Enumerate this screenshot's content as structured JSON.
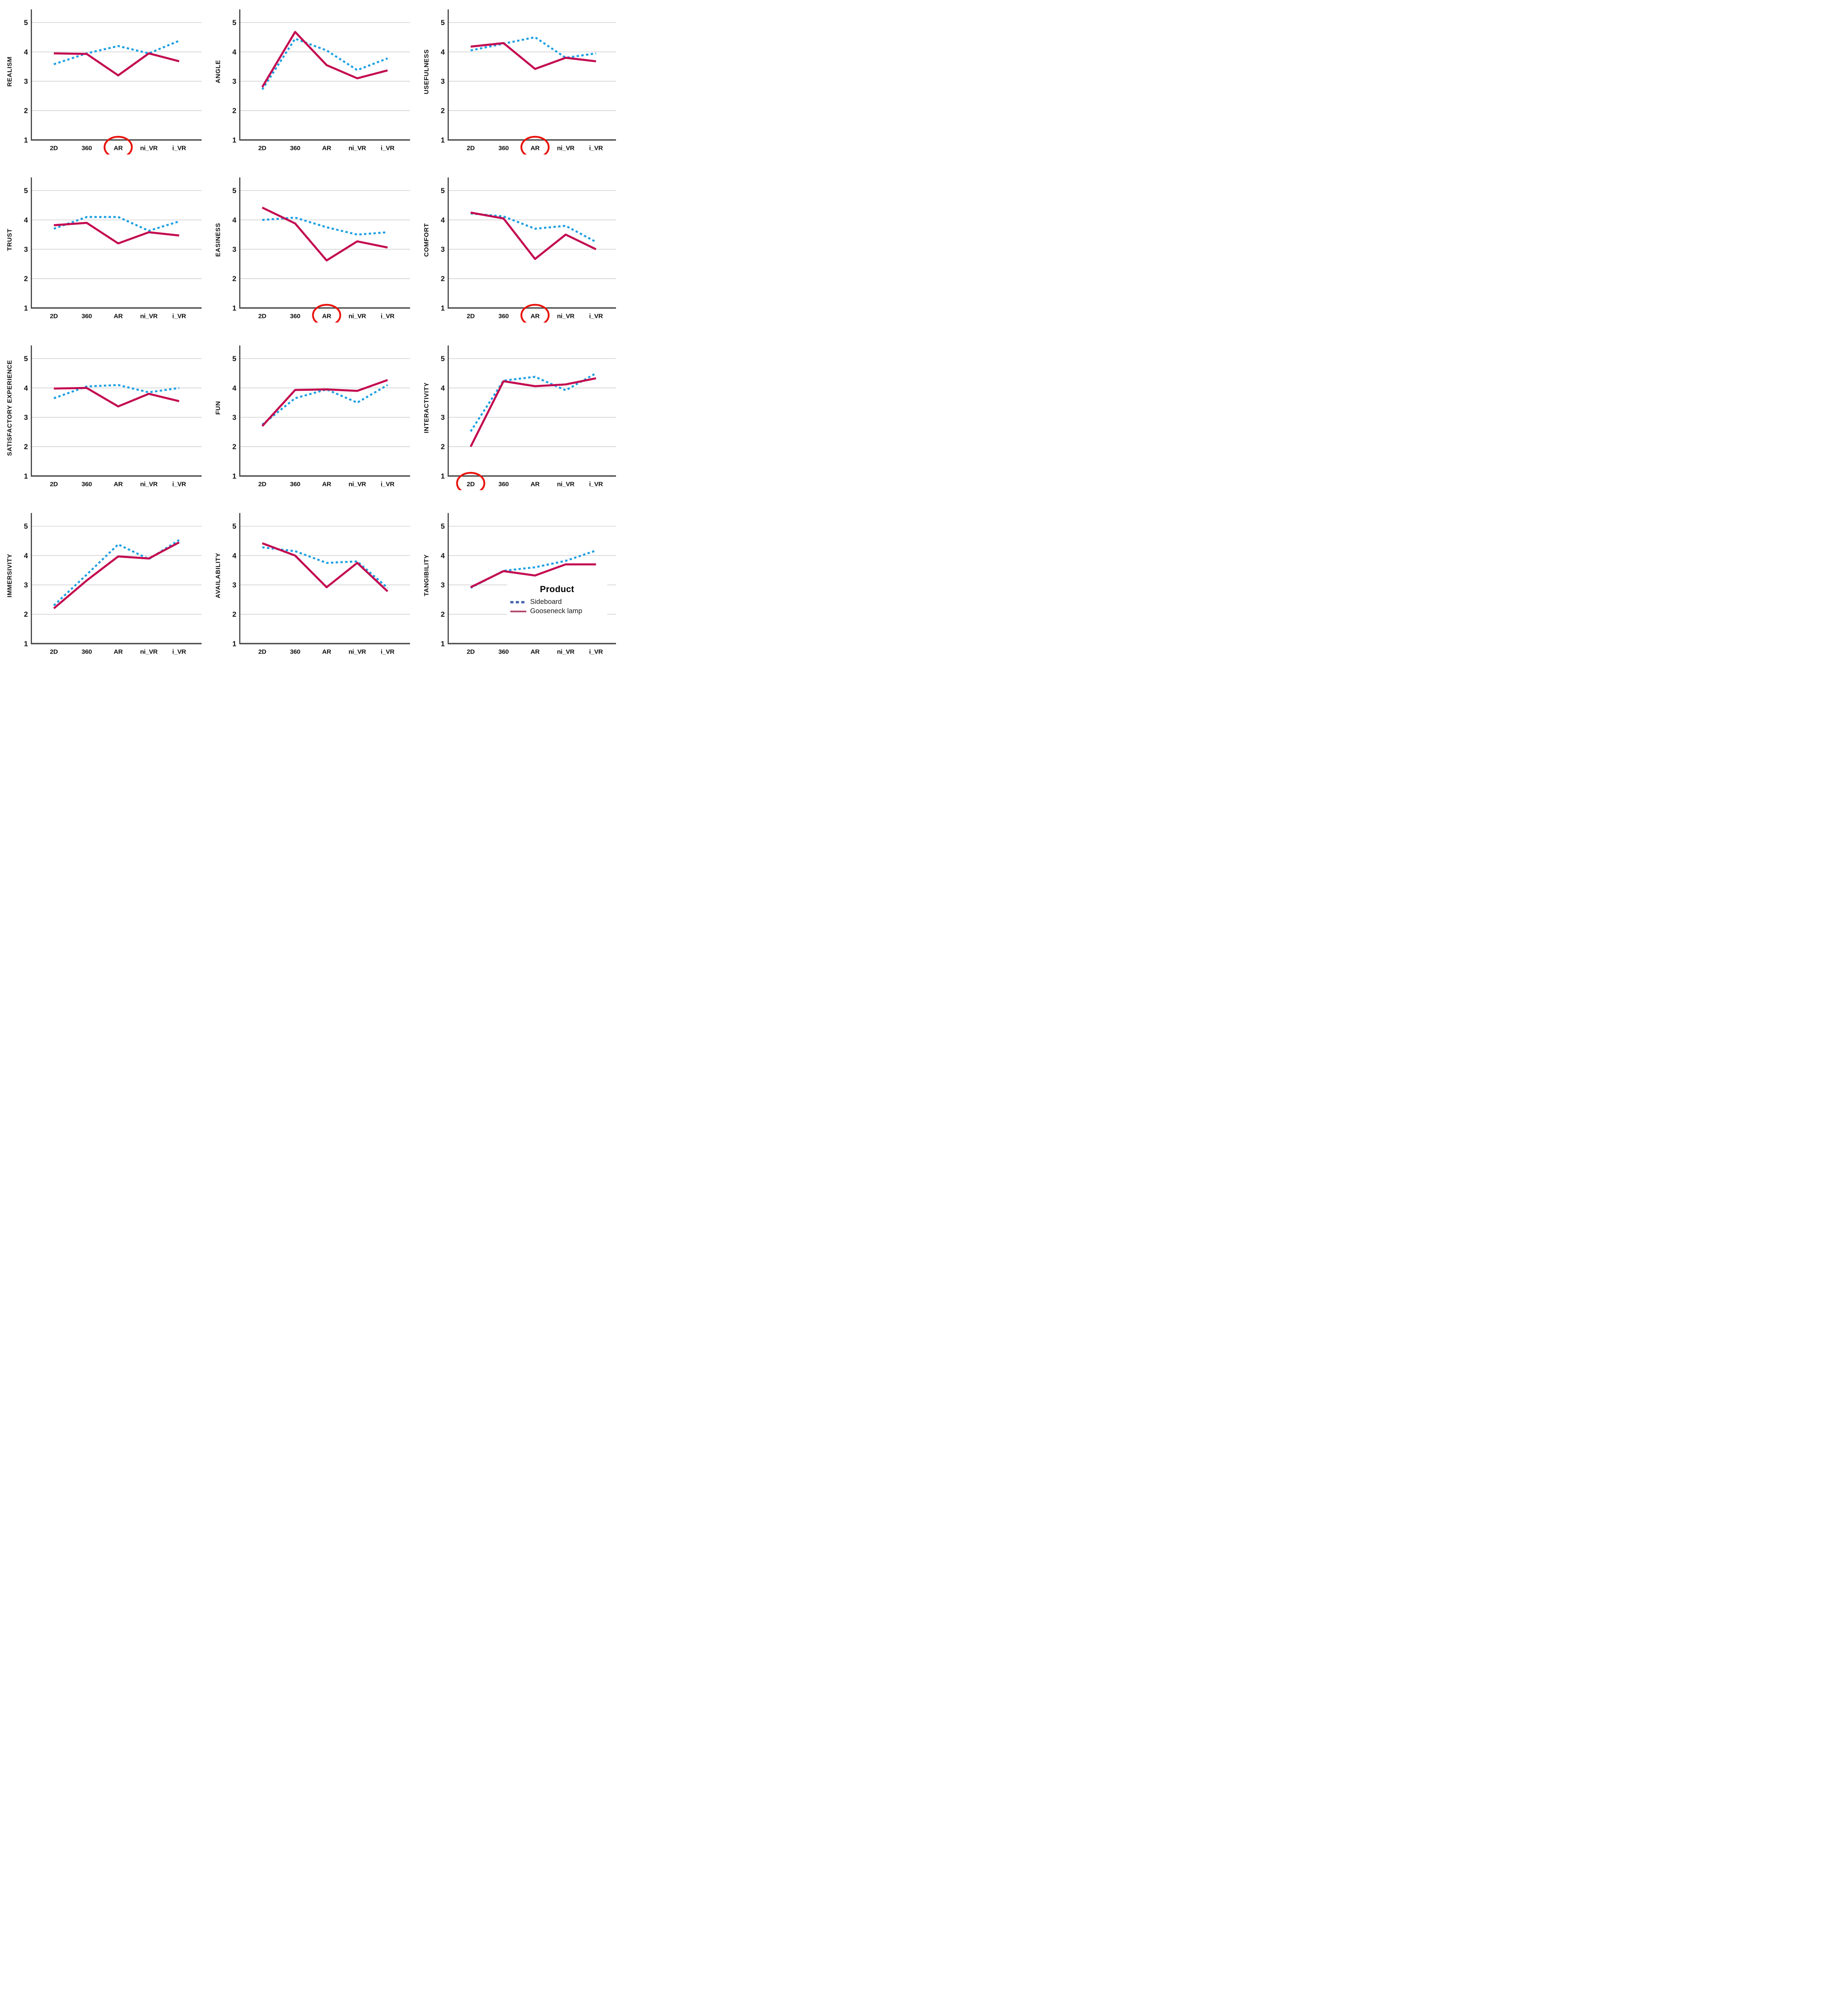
{
  "figure": {
    "background": "#ffffff",
    "description": "4x3 grid of SPSS-style profile line charts comparing two products across five presentation formats"
  },
  "legend": {
    "title": "Product",
    "items": [
      {
        "label": "Sideboard",
        "series": "sideboard",
        "swatch_style": "dashed",
        "swatch_color": "#4463AC"
      },
      {
        "label": "Gooseneck lamp",
        "series": "gooseneck",
        "swatch_style": "solid",
        "swatch_color": "#B6496C"
      }
    ],
    "position": "inside bottom-right panel (TANGIBILITY)"
  },
  "colors": {
    "sideboard_line": "#1B9FE4",
    "gooseneck_line": "#C30A50",
    "gridline": "#c6c6c6",
    "y_axis": "#2e2e2e",
    "x_axis": "#4d4d4d",
    "tick_label": "#111111",
    "annotation_circle": "#E8130C"
  },
  "chart_data": {
    "type": "line",
    "categories": [
      "2D",
      "360",
      "AR",
      "ni_VR",
      "i_VR"
    ],
    "series_names": [
      "Sideboard",
      "Gooseneck lamp"
    ],
    "xlabel": "",
    "ylim": [
      1,
      5
    ],
    "y_ticks": [
      1,
      2,
      3,
      4,
      5
    ],
    "gridlines": [
      2,
      3,
      4,
      5
    ],
    "grid": true,
    "line_styles": {
      "sideboard": "dashed",
      "gooseneck": "solid"
    },
    "annotation_note": "red ellipse drawn around one x-axis category label on some panels",
    "charts": [
      {
        "title": "REALISM",
        "circled": "AR",
        "series": {
          "sideboard": [
            3.58,
            3.95,
            4.2,
            3.95,
            4.38
          ],
          "gooseneck": [
            3.95,
            3.93,
            3.2,
            3.95,
            3.68
          ]
        }
      },
      {
        "title": "ANGLE",
        "circled": null,
        "series": {
          "sideboard": [
            2.72,
            4.45,
            4.05,
            3.38,
            3.78
          ],
          "gooseneck": [
            2.8,
            4.68,
            3.55,
            3.1,
            3.37
          ]
        }
      },
      {
        "title": "USEFULNESS",
        "circled": "AR",
        "series": {
          "sideboard": [
            4.05,
            4.28,
            4.5,
            3.8,
            3.95
          ],
          "gooseneck": [
            4.18,
            4.3,
            3.42,
            3.8,
            3.68
          ]
        }
      },
      {
        "title": "TRUST",
        "circled": null,
        "series": {
          "sideboard": [
            3.7,
            4.1,
            4.1,
            3.63,
            3.95
          ],
          "gooseneck": [
            3.82,
            3.9,
            3.2,
            3.58,
            3.47
          ]
        }
      },
      {
        "title": "EASINESS",
        "circled": "AR",
        "series": {
          "sideboard": [
            4.0,
            4.08,
            3.75,
            3.5,
            3.58
          ],
          "gooseneck": [
            4.42,
            3.88,
            2.62,
            3.27,
            3.06
          ]
        }
      },
      {
        "title": "COMFORT",
        "circled": "AR",
        "series": {
          "sideboard": [
            4.22,
            4.12,
            3.7,
            3.8,
            3.25
          ],
          "gooseneck": [
            4.25,
            4.05,
            2.67,
            3.5,
            3.0
          ]
        }
      },
      {
        "title": "SATISFACTORY EXPERIENCE",
        "circled": null,
        "series": {
          "sideboard": [
            3.65,
            4.05,
            4.1,
            3.85,
            4.0
          ],
          "gooseneck": [
            3.98,
            4.0,
            3.37,
            3.8,
            3.55
          ]
        }
      },
      {
        "title": "FUN",
        "circled": null,
        "series": {
          "sideboard": [
            2.75,
            3.65,
            3.95,
            3.5,
            4.1
          ],
          "gooseneck": [
            2.7,
            3.93,
            3.95,
            3.9,
            4.27
          ]
        }
      },
      {
        "title": "INTERACTIVITY",
        "circled": "2D",
        "series": {
          "sideboard": [
            2.52,
            4.25,
            4.38,
            3.92,
            4.5
          ],
          "gooseneck": [
            2.0,
            4.23,
            4.06,
            4.12,
            4.33
          ]
        }
      },
      {
        "title": "IMMERSIVITY",
        "circled": null,
        "series": {
          "sideboard": [
            2.3,
            3.35,
            4.38,
            3.88,
            4.53
          ],
          "gooseneck": [
            2.2,
            3.15,
            3.97,
            3.9,
            4.45
          ]
        }
      },
      {
        "title": "AVAILABILITY",
        "circled": null,
        "series": {
          "sideboard": [
            4.28,
            4.15,
            3.75,
            3.8,
            2.9
          ],
          "gooseneck": [
            4.42,
            4.0,
            2.92,
            3.75,
            2.78
          ]
        }
      },
      {
        "title": "TANGIBILITY",
        "circled": null,
        "series": {
          "sideboard": [
            2.9,
            3.48,
            3.6,
            3.82,
            4.17
          ],
          "gooseneck": [
            2.92,
            3.47,
            3.32,
            3.7,
            3.7
          ]
        }
      }
    ]
  }
}
